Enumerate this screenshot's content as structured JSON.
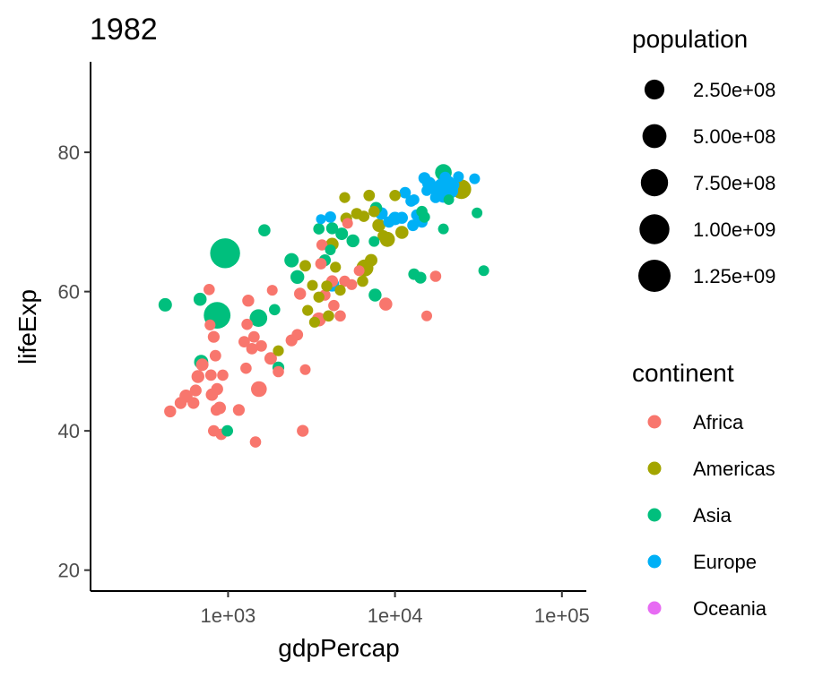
{
  "chart_data": {
    "type": "scatter",
    "title": "1982",
    "xlabel": "gdpPercap",
    "ylabel": "lifeExp",
    "x_scale": "log10",
    "xlim": [
      150,
      140000
    ],
    "ylim": [
      17,
      93
    ],
    "x_ticks": [
      1000,
      10000,
      100000
    ],
    "x_tick_labels": [
      "1e+03",
      "1e+04",
      "1e+05"
    ],
    "y_ticks": [
      20,
      40,
      60,
      80
    ],
    "y_tick_labels": [
      "20",
      "40",
      "60",
      "80"
    ],
    "grid": false,
    "size_legend": {
      "title": "population",
      "breaks": [
        250000000,
        500000000,
        750000000,
        1000000000,
        1250000000
      ],
      "labels": [
        "2.50e+08",
        "5.00e+08",
        "7.50e+08",
        "1.00e+09",
        "1.25e+09"
      ]
    },
    "color_legend": {
      "title": "continent",
      "entries": [
        {
          "name": "Africa",
          "color": "#F8766D"
        },
        {
          "name": "Americas",
          "color": "#A3A500"
        },
        {
          "name": "Asia",
          "color": "#00BF7D"
        },
        {
          "name": "Europe",
          "color": "#00B0F6"
        },
        {
          "name": "Oceania",
          "color": "#E76BF3"
        }
      ]
    },
    "series": [
      {
        "name": "Africa",
        "color": "#F8766D",
        "points": [
          [
            450,
            42.8,
            15000000
          ],
          [
            520,
            44,
            14000000
          ],
          [
            560,
            45,
            30000000
          ],
          [
            620,
            44,
            13000000
          ],
          [
            640,
            45.8,
            12000000
          ],
          [
            660,
            47.8,
            25000000
          ],
          [
            700,
            49.5,
            20000000
          ],
          [
            770,
            60.3,
            8000000
          ],
          [
            780,
            55.2,
            6000000
          ],
          [
            790,
            48,
            10000000
          ],
          [
            800,
            45.2,
            18000000
          ],
          [
            820,
            40,
            10000000
          ],
          [
            820,
            53.5,
            12000000
          ],
          [
            840,
            50.8,
            9000000
          ],
          [
            850,
            43,
            9000000
          ],
          [
            860,
            46,
            14000000
          ],
          [
            890,
            43.3,
            20000000
          ],
          [
            910,
            39.5,
            10000000
          ],
          [
            930,
            48,
            8000000
          ],
          [
            1160,
            43,
            12000000
          ],
          [
            1250,
            52.8,
            9000000
          ],
          [
            1280,
            49,
            8000000
          ],
          [
            1300,
            55.3,
            8000000
          ],
          [
            1320,
            58.7,
            15000000
          ],
          [
            1390,
            51.8,
            10000000
          ],
          [
            1430,
            53.5,
            10000000
          ],
          [
            1460,
            38.4,
            8000000
          ],
          [
            1530,
            46,
            90000000
          ],
          [
            1580,
            52.2,
            10000000
          ],
          [
            1800,
            50.4,
            20000000
          ],
          [
            1840,
            60.2,
            5000000
          ],
          [
            2000,
            48.5,
            8000000
          ],
          [
            2400,
            53,
            12000000
          ],
          [
            2600,
            53.8,
            10000000
          ],
          [
            2700,
            59.7,
            14000000
          ],
          [
            2800,
            40,
            12000000
          ],
          [
            2900,
            48.8,
            5000000
          ],
          [
            3500,
            56,
            45000000
          ],
          [
            3600,
            64,
            10000000
          ],
          [
            3650,
            66.7,
            7000000
          ],
          [
            3800,
            59.5,
            8000000
          ],
          [
            4200,
            61.5,
            12000000
          ],
          [
            4300,
            58,
            8000000
          ],
          [
            4700,
            56.5,
            8000000
          ],
          [
            5000,
            61.5,
            7000000
          ],
          [
            5200,
            69.8,
            5000000
          ],
          [
            5500,
            61,
            6000000
          ],
          [
            6100,
            63,
            5000000
          ],
          [
            8800,
            58.2,
            30000000
          ],
          [
            15500,
            56.5,
            5000000
          ],
          [
            17500,
            62.2,
            8000000
          ]
        ]
      },
      {
        "name": "Americas",
        "color": "#A3A500",
        "points": [
          [
            2000,
            51.5,
            6000000
          ],
          [
            2900,
            63.7,
            10000000
          ],
          [
            3000,
            57.3,
            6000000
          ],
          [
            3200,
            60.9,
            5000000
          ],
          [
            3300,
            55.6,
            6000000
          ],
          [
            3500,
            59.2,
            7000000
          ],
          [
            3900,
            60.8,
            7000000
          ],
          [
            4000,
            56.5,
            8000000
          ],
          [
            4200,
            66.8,
            26000000
          ],
          [
            4400,
            63.5,
            6000000
          ],
          [
            4700,
            60.2,
            6000000
          ],
          [
            5000,
            73.5,
            6000000
          ],
          [
            5100,
            70.5,
            12000000
          ],
          [
            5900,
            71.2,
            8000000
          ],
          [
            6400,
            61.5,
            8000000
          ],
          [
            6500,
            70.8,
            8000000
          ],
          [
            6600,
            63.4,
            130000000
          ],
          [
            7000,
            73.8,
            10000000
          ],
          [
            7200,
            64.5,
            20000000
          ],
          [
            7500,
            71.5,
            8000000
          ],
          [
            8000,
            69.5,
            28000000
          ],
          [
            8500,
            68,
            10000000
          ],
          [
            9000,
            67.5,
            72000000
          ],
          [
            10000,
            73.8,
            8000000
          ],
          [
            11000,
            68.5,
            30000000
          ],
          [
            25000,
            74.7,
            232000000
          ]
        ]
      },
      {
        "name": "Asia",
        "color": "#00BF7D",
        "points": [
          [
            420,
            58.1,
            35000000
          ],
          [
            680,
            58.9,
            30000000
          ],
          [
            690,
            49.9,
            50000000
          ],
          [
            860,
            56.6,
            708000000
          ],
          [
            960,
            65.5,
            1000000000
          ],
          [
            990,
            40,
            10000000
          ],
          [
            1520,
            56.2,
            150000000
          ],
          [
            1650,
            68.8,
            16000000
          ],
          [
            1900,
            57.4,
            8000000
          ],
          [
            2000,
            49.1,
            13000000
          ],
          [
            2400,
            64.5,
            53000000
          ],
          [
            2600,
            62.1,
            40000000
          ],
          [
            3500,
            69,
            8000000
          ],
          [
            3800,
            64.5,
            12000000
          ],
          [
            4100,
            66,
            5000000
          ],
          [
            4200,
            69.1,
            15000000
          ],
          [
            4800,
            68.3,
            20000000
          ],
          [
            5600,
            67.3,
            25000000
          ],
          [
            7500,
            67.2,
            5000000
          ],
          [
            7600,
            59.5,
            27000000
          ],
          [
            7700,
            72,
            16000000
          ],
          [
            13000,
            62.5,
            10000000
          ],
          [
            14200,
            62,
            12000000
          ],
          [
            14500,
            71.5,
            8000000
          ],
          [
            15000,
            70.7,
            8000000
          ],
          [
            19500,
            69,
            5000000
          ],
          [
            19500,
            77.1,
            120000000
          ],
          [
            21000,
            73.2,
            4000000
          ],
          [
            31000,
            71.3,
            5000000
          ],
          [
            34000,
            63,
            5000000
          ]
        ]
      },
      {
        "name": "Europe",
        "color": "#00B0F6",
        "points": [
          [
            3600,
            70.4,
            3000000
          ],
          [
            4100,
            70.7,
            9000000
          ],
          [
            4200,
            61,
            47000000
          ],
          [
            8300,
            71.2,
            22000000
          ],
          [
            9200,
            70,
            10000000
          ],
          [
            10000,
            70.5,
            36000000
          ],
          [
            11000,
            70.6,
            15000000
          ],
          [
            11500,
            74.2,
            10000000
          ],
          [
            12500,
            73,
            10000000
          ],
          [
            12800,
            69.5,
            9000000
          ],
          [
            13000,
            73.2,
            5000000
          ],
          [
            13500,
            71,
            10000000
          ],
          [
            14500,
            70,
            10000000
          ],
          [
            15500,
            74.5,
            4000000
          ],
          [
            15000,
            76.3,
            15000000
          ],
          [
            16000,
            75.5,
            38000000
          ],
          [
            17000,
            74.7,
            5000000
          ],
          [
            17500,
            73.5,
            7000000
          ],
          [
            18000,
            74,
            14000000
          ],
          [
            19000,
            75.2,
            57000000
          ],
          [
            19500,
            73.8,
            56000000
          ],
          [
            20000,
            76.4,
            8000000
          ],
          [
            21000,
            75.8,
            8000000
          ],
          [
            22500,
            75.3,
            7000000
          ],
          [
            21500,
            74.5,
            78000000
          ],
          [
            24000,
            76.5,
            5000000
          ],
          [
            30000,
            76.2,
            5000000
          ]
        ]
      },
      {
        "name": "Oceania",
        "color": "#E76BF3",
        "points": []
      }
    ]
  }
}
